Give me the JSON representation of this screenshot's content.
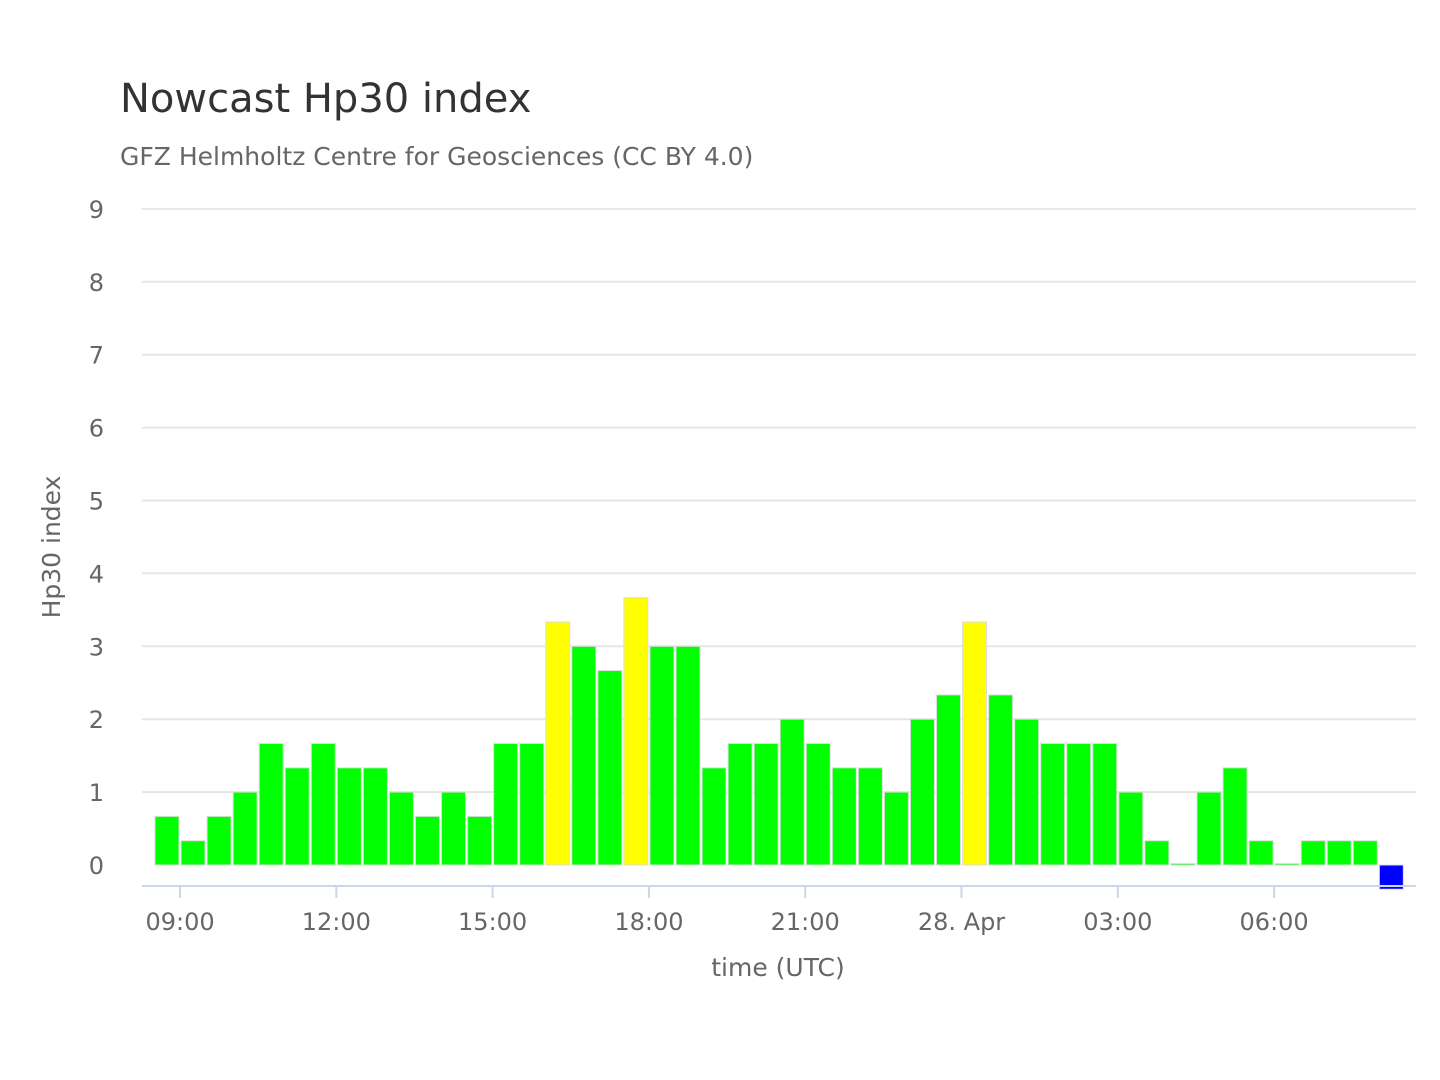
{
  "chart_data": {
    "type": "bar",
    "title": "Nowcast Hp30 index",
    "subtitle": "GFZ Helmholtz Centre for Geosciences (CC BY 4.0)",
    "xlabel": "time (UTC)",
    "ylabel": "Hp30 index",
    "ylim": [
      0,
      9
    ],
    "yticks": [
      0,
      1,
      2,
      3,
      4,
      5,
      6,
      7,
      8,
      9
    ],
    "xticks": [
      "09:00",
      "12:00",
      "15:00",
      "18:00",
      "21:00",
      "28. Apr",
      "03:00",
      "06:00"
    ],
    "start_time": "27 Apr 08:30",
    "interval_minutes": 30,
    "grid": true,
    "legend": "none",
    "colors": {
      "low": "#00ff00",
      "moderate": "#ffff00",
      "forecast": "#0000ff"
    },
    "values": [
      0.667,
      0.333,
      0.667,
      1,
      1.667,
      1.333,
      1.667,
      1.333,
      1.333,
      1,
      0.667,
      1,
      0.667,
      1.667,
      1.667,
      3.333,
      3,
      2.667,
      3.667,
      3,
      3,
      1.333,
      1.667,
      1.667,
      2,
      1.667,
      1.333,
      1.333,
      1,
      2,
      2.333,
      3.333,
      2.333,
      2,
      1.667,
      1.667,
      1.667,
      1,
      0.333,
      0,
      1,
      1.333,
      0.333,
      0,
      0.333,
      0.333,
      0.333,
      -0.333
    ],
    "bar_categories": [
      "low",
      "low",
      "low",
      "low",
      "low",
      "low",
      "low",
      "low",
      "low",
      "low",
      "low",
      "low",
      "low",
      "low",
      "low",
      "moderate",
      "low",
      "low",
      "moderate",
      "low",
      "low",
      "low",
      "low",
      "low",
      "low",
      "low",
      "low",
      "low",
      "low",
      "low",
      "low",
      "moderate",
      "low",
      "low",
      "low",
      "low",
      "low",
      "low",
      "low",
      "low",
      "low",
      "low",
      "low",
      "low",
      "low",
      "low",
      "low",
      "forecast"
    ]
  }
}
